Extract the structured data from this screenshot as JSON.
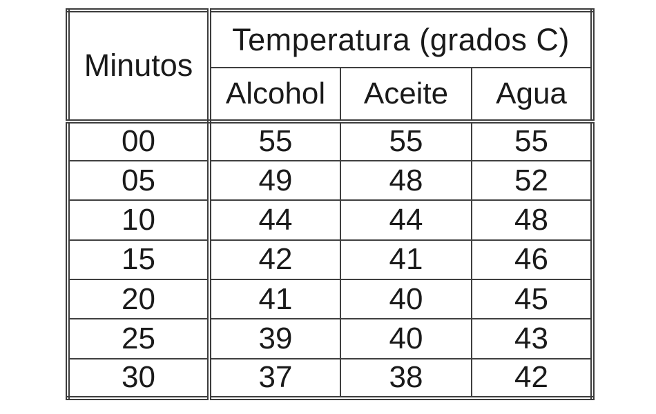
{
  "chart_data": {
    "type": "table",
    "title": "Temperatura (grados C)",
    "corner_label": "Minutos",
    "columns": [
      "Alcohol",
      "Aceite",
      "Agua"
    ],
    "categories": [
      "00",
      "05",
      "10",
      "15",
      "20",
      "25",
      "30"
    ],
    "series": [
      {
        "name": "Alcohol",
        "values": [
          55,
          49,
          44,
          42,
          41,
          39,
          37
        ]
      },
      {
        "name": "Aceite",
        "values": [
          55,
          48,
          44,
          41,
          40,
          40,
          38
        ]
      },
      {
        "name": "Agua",
        "values": [
          55,
          52,
          48,
          46,
          45,
          43,
          42
        ]
      }
    ],
    "rows": [
      [
        "00",
        "55",
        "55",
        "55"
      ],
      [
        "05",
        "49",
        "48",
        "52"
      ],
      [
        "10",
        "44",
        "44",
        "48"
      ],
      [
        "15",
        "42",
        "41",
        "46"
      ],
      [
        "20",
        "41",
        "40",
        "45"
      ],
      [
        "25",
        "39",
        "40",
        "43"
      ],
      [
        "30",
        "37",
        "38",
        "42"
      ]
    ]
  },
  "colors": {
    "border": "#3c3c3c",
    "text": "#1a1a1a",
    "background": "#ffffff"
  }
}
